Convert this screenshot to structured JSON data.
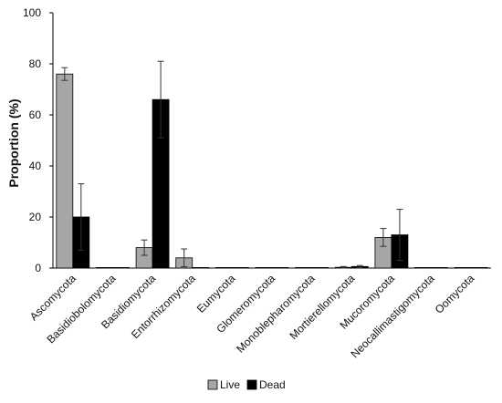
{
  "chart_data": {
    "type": "bar",
    "title": "",
    "xlabel": "",
    "ylabel": "Proportion (%)",
    "ylim": [
      0,
      100
    ],
    "yticks": [
      "0",
      "20",
      "40",
      "60",
      "80",
      "100"
    ],
    "grid": false,
    "legend_position": "bottom",
    "categories": [
      "Ascomycota",
      "Basidiobolomycota",
      "Basidiomycota",
      "Entorrhizomycota",
      "Eumycota",
      "Glomeromycota",
      "Monoblepharomycota",
      "Mortierellomycota",
      "Mucoromycota",
      "Neocallimastigomycota",
      "Oomycota"
    ],
    "series": [
      {
        "name": "Live",
        "color": "#a6a6a6",
        "values": [
          76,
          0.1,
          8,
          4,
          0.1,
          0.1,
          0.1,
          0.3,
          12,
          0.1,
          0.1
        ],
        "error": [
          2.5,
          0,
          3,
          3.5,
          0,
          0,
          0,
          0.3,
          3.5,
          0,
          0
        ]
      },
      {
        "name": "Dead",
        "color": "#000000",
        "values": [
          20,
          0.1,
          66,
          0.1,
          0.1,
          0.1,
          0.1,
          0.6,
          13,
          0.1,
          0.1
        ],
        "error": [
          13,
          0,
          15,
          0,
          0,
          0,
          0,
          0.4,
          10,
          0,
          0
        ]
      }
    ]
  }
}
